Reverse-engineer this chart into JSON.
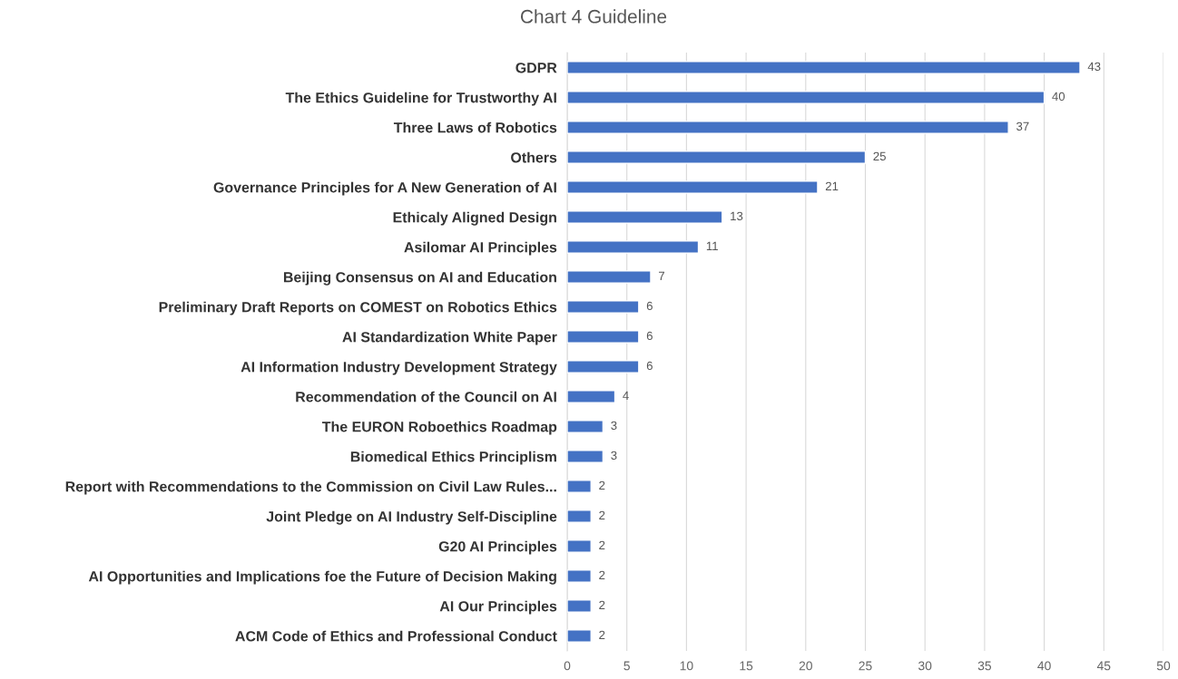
{
  "chart_data": {
    "type": "bar",
    "orientation": "horizontal",
    "title": "Chart 4 Guideline",
    "categories": [
      "GDPR",
      "The Ethics Guideline for Trustworthy AI",
      "Three Laws of Robotics",
      "Others",
      "Governance Principles for A New Generation of AI",
      "Ethicaly Aligned Design",
      "Asilomar AI Principles",
      "Beijing Consensus on AI and Education",
      "Preliminary Draft Reports on COMEST on Robotics Ethics",
      "AI Standardization White Paper",
      "AI Information Industry Development Strategy",
      "Recommendation of the Council on AI",
      "The EURON Roboethics Roadmap",
      "Biomedical Ethics Principlism",
      "Report with Recommendations to the Commission on Civil Law Rules...",
      "Joint Pledge on AI Industry Self-Discipline",
      "G20 AI Principles",
      "AI Opportunities and Implications foe the Future of Decision Making",
      "AI Our Principles",
      "ACM Code of Ethics and Professional Conduct"
    ],
    "values": [
      43,
      40,
      37,
      25,
      21,
      13,
      11,
      7,
      6,
      6,
      6,
      4,
      3,
      3,
      2,
      2,
      2,
      2,
      2,
      2
    ],
    "color": "#4472c4",
    "xlim": [
      0,
      50
    ],
    "xticks": [
      0,
      5,
      10,
      15,
      20,
      25,
      30,
      35,
      40,
      45,
      50
    ],
    "grid": "x",
    "data_labels": true
  }
}
